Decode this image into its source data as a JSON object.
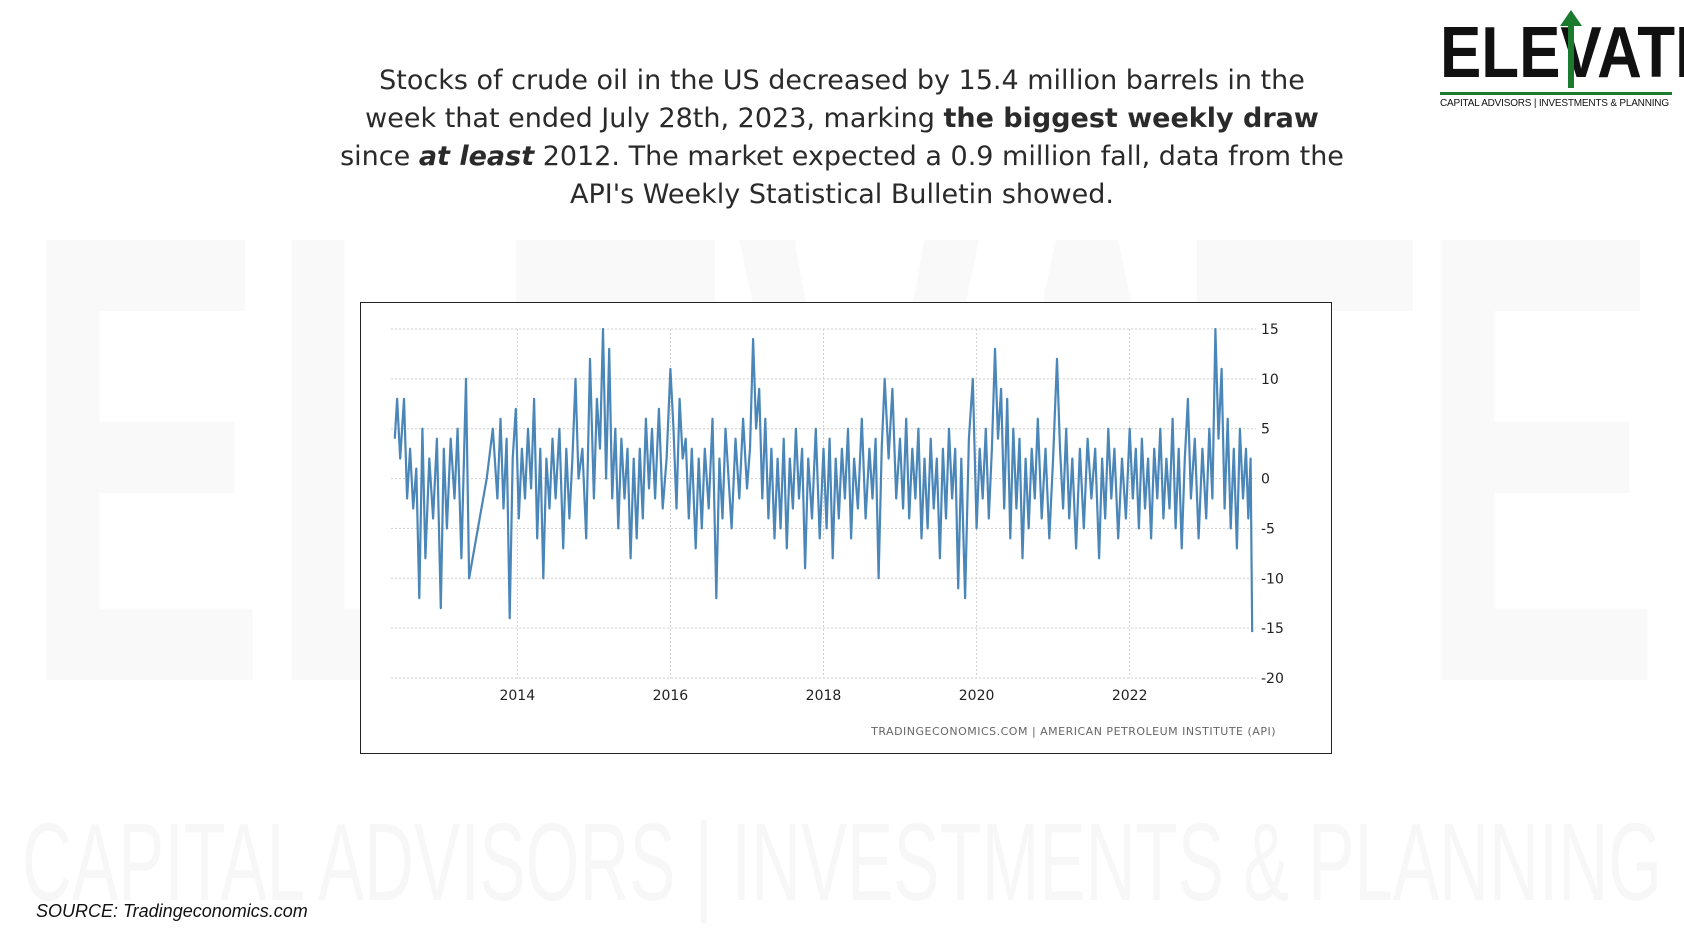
{
  "headline": {
    "part1": "Stocks of crude oil in the US decreased by 15.4 million barrels in the week that ended July 28th, 2023, marking ",
    "bold1": "the biggest weekly draw",
    "part2": " since ",
    "bold_italic": "at least",
    "part3": " 2012. The market expected a 0.9 million fall, data from the API's Weekly Statistical Bulletin showed."
  },
  "logo": {
    "word": "ELEVATE",
    "tagline": "CAPITAL ADVISORS | INVESTMENTS & PLANNING",
    "accent_color": "#1a7a2e"
  },
  "watermark": {
    "word": "ELEVATE",
    "tagline": "CAPITAL ADVISORS | INVESTMENTS & PLANNING"
  },
  "source": "SOURCE: Tradingeconomics.com",
  "chart_data": {
    "type": "line",
    "title": "",
    "xlabel": "",
    "ylabel": "",
    "credit": "TRADINGECONOMICS.COM  |  AMERICAN PETROLEUM INSTITUTE (API)",
    "x_ticks": [
      "2014",
      "2016",
      "2018",
      "2020",
      "2022"
    ],
    "y_ticks": [
      15,
      10,
      5,
      0,
      -5,
      -10,
      -15,
      -20
    ],
    "ylim": [
      -20,
      15
    ],
    "xlim": [
      2012.35,
      2023.65
    ],
    "grid": true,
    "line_color": "#4a86b8",
    "series": [
      {
        "name": "",
        "points": [
          [
            2012.4,
            4
          ],
          [
            2012.43,
            8
          ],
          [
            2012.47,
            2
          ],
          [
            2012.52,
            8
          ],
          [
            2012.56,
            -2
          ],
          [
            2012.6,
            3
          ],
          [
            2012.64,
            -3
          ],
          [
            2012.68,
            1
          ],
          [
            2012.72,
            -12
          ],
          [
            2012.76,
            5
          ],
          [
            2012.8,
            -8
          ],
          [
            2012.85,
            2
          ],
          [
            2012.9,
            -4
          ],
          [
            2012.95,
            4
          ],
          [
            2013.0,
            -13
          ],
          [
            2013.04,
            3
          ],
          [
            2013.08,
            -5
          ],
          [
            2013.13,
            4
          ],
          [
            2013.18,
            -2
          ],
          [
            2013.22,
            5
          ],
          [
            2013.27,
            -8
          ],
          [
            2013.33,
            10
          ],
          [
            2013.37,
            -10
          ],
          [
            2013.6,
            0
          ],
          [
            2013.68,
            5
          ],
          [
            2013.74,
            -2
          ],
          [
            2013.78,
            6
          ],
          [
            2013.82,
            -3
          ],
          [
            2013.86,
            4
          ],
          [
            2013.9,
            -14
          ],
          [
            2013.94,
            2
          ],
          [
            2013.98,
            7
          ],
          [
            2014.02,
            -4
          ],
          [
            2014.06,
            3
          ],
          [
            2014.1,
            -2
          ],
          [
            2014.14,
            5
          ],
          [
            2014.18,
            -1
          ],
          [
            2014.22,
            8
          ],
          [
            2014.26,
            -6
          ],
          [
            2014.3,
            3
          ],
          [
            2014.34,
            -10
          ],
          [
            2014.38,
            2
          ],
          [
            2014.42,
            -3
          ],
          [
            2014.46,
            4
          ],
          [
            2014.5,
            -2
          ],
          [
            2014.55,
            5
          ],
          [
            2014.6,
            -7
          ],
          [
            2014.64,
            3
          ],
          [
            2014.68,
            -4
          ],
          [
            2014.72,
            2
          ],
          [
            2014.76,
            10
          ],
          [
            2014.8,
            0
          ],
          [
            2014.85,
            3
          ],
          [
            2014.9,
            -6
          ],
          [
            2014.95,
            12
          ],
          [
            2015.0,
            -2
          ],
          [
            2015.04,
            8
          ],
          [
            2015.08,
            3
          ],
          [
            2015.12,
            15
          ],
          [
            2015.16,
            0
          ],
          [
            2015.2,
            13
          ],
          [
            2015.24,
            -2
          ],
          [
            2015.28,
            5
          ],
          [
            2015.32,
            -5
          ],
          [
            2015.36,
            4
          ],
          [
            2015.4,
            -2
          ],
          [
            2015.44,
            3
          ],
          [
            2015.48,
            -8
          ],
          [
            2015.52,
            2
          ],
          [
            2015.56,
            -6
          ],
          [
            2015.6,
            3
          ],
          [
            2015.64,
            -4
          ],
          [
            2015.68,
            6
          ],
          [
            2015.72,
            -1
          ],
          [
            2015.76,
            5
          ],
          [
            2015.8,
            -2
          ],
          [
            2015.85,
            7
          ],
          [
            2015.9,
            -3
          ],
          [
            2015.95,
            2
          ],
          [
            2016.0,
            11
          ],
          [
            2016.04,
            5
          ],
          [
            2016.08,
            -3
          ],
          [
            2016.12,
            8
          ],
          [
            2016.16,
            2
          ],
          [
            2016.2,
            4
          ],
          [
            2016.24,
            -4
          ],
          [
            2016.28,
            3
          ],
          [
            2016.33,
            -7
          ],
          [
            2016.37,
            2
          ],
          [
            2016.41,
            -5
          ],
          [
            2016.45,
            3
          ],
          [
            2016.5,
            -3
          ],
          [
            2016.55,
            6
          ],
          [
            2016.6,
            -12
          ],
          [
            2016.64,
            2
          ],
          [
            2016.68,
            -4
          ],
          [
            2016.72,
            5
          ],
          [
            2016.76,
            0
          ],
          [
            2016.8,
            -5
          ],
          [
            2016.85,
            4
          ],
          [
            2016.9,
            -2
          ],
          [
            2016.95,
            6
          ],
          [
            2017.0,
            -1
          ],
          [
            2017.04,
            3
          ],
          [
            2017.08,
            14
          ],
          [
            2017.12,
            5
          ],
          [
            2017.16,
            9
          ],
          [
            2017.2,
            -2
          ],
          [
            2017.24,
            6
          ],
          [
            2017.28,
            -4
          ],
          [
            2017.32,
            3
          ],
          [
            2017.36,
            -6
          ],
          [
            2017.4,
            2
          ],
          [
            2017.44,
            -5
          ],
          [
            2017.48,
            4
          ],
          [
            2017.52,
            -7
          ],
          [
            2017.56,
            2
          ],
          [
            2017.6,
            -3
          ],
          [
            2017.64,
            5
          ],
          [
            2017.68,
            -2
          ],
          [
            2017.72,
            3
          ],
          [
            2017.76,
            -9
          ],
          [
            2017.8,
            2
          ],
          [
            2017.85,
            -4
          ],
          [
            2017.9,
            5
          ],
          [
            2017.95,
            -6
          ],
          [
            2018.0,
            3
          ],
          [
            2018.04,
            -5
          ],
          [
            2018.08,
            4
          ],
          [
            2018.12,
            -8
          ],
          [
            2018.16,
            2
          ],
          [
            2018.2,
            -4
          ],
          [
            2018.24,
            3
          ],
          [
            2018.28,
            -2
          ],
          [
            2018.32,
            5
          ],
          [
            2018.36,
            -6
          ],
          [
            2018.4,
            2
          ],
          [
            2018.45,
            -3
          ],
          [
            2018.5,
            6
          ],
          [
            2018.55,
            -4
          ],
          [
            2018.6,
            3
          ],
          [
            2018.64,
            -2
          ],
          [
            2018.68,
            4
          ],
          [
            2018.72,
            -10
          ],
          [
            2018.76,
            3
          ],
          [
            2018.8,
            10
          ],
          [
            2018.85,
            2
          ],
          [
            2018.9,
            9
          ],
          [
            2018.95,
            -2
          ],
          [
            2019.0,
            4
          ],
          [
            2019.04,
            -3
          ],
          [
            2019.08,
            6
          ],
          [
            2019.12,
            -4
          ],
          [
            2019.16,
            3
          ],
          [
            2019.2,
            -2
          ],
          [
            2019.24,
            5
          ],
          [
            2019.28,
            -6
          ],
          [
            2019.32,
            2
          ],
          [
            2019.36,
            -5
          ],
          [
            2019.4,
            4
          ],
          [
            2019.44,
            -3
          ],
          [
            2019.48,
            2
          ],
          [
            2019.52,
            -8
          ],
          [
            2019.56,
            3
          ],
          [
            2019.6,
            -4
          ],
          [
            2019.64,
            5
          ],
          [
            2019.68,
            -2
          ],
          [
            2019.72,
            3
          ],
          [
            2019.76,
            -11
          ],
          [
            2019.8,
            2
          ],
          [
            2019.85,
            -12
          ],
          [
            2019.9,
            4
          ],
          [
            2019.95,
            10
          ],
          [
            2020.0,
            -5
          ],
          [
            2020.04,
            3
          ],
          [
            2020.08,
            -2
          ],
          [
            2020.12,
            5
          ],
          [
            2020.16,
            -4
          ],
          [
            2020.2,
            3
          ],
          [
            2020.24,
            13
          ],
          [
            2020.28,
            4
          ],
          [
            2020.32,
            9
          ],
          [
            2020.36,
            -3
          ],
          [
            2020.4,
            8
          ],
          [
            2020.44,
            -6
          ],
          [
            2020.48,
            5
          ],
          [
            2020.52,
            -3
          ],
          [
            2020.56,
            4
          ],
          [
            2020.6,
            -8
          ],
          [
            2020.64,
            2
          ],
          [
            2020.68,
            -5
          ],
          [
            2020.72,
            3
          ],
          [
            2020.76,
            -2
          ],
          [
            2020.8,
            6
          ],
          [
            2020.85,
            -4
          ],
          [
            2020.9,
            3
          ],
          [
            2020.95,
            -6
          ],
          [
            2021.0,
            2
          ],
          [
            2021.05,
            12
          ],
          [
            2021.09,
            3
          ],
          [
            2021.13,
            -3
          ],
          [
            2021.17,
            5
          ],
          [
            2021.21,
            -4
          ],
          [
            2021.25,
            2
          ],
          [
            2021.3,
            -7
          ],
          [
            2021.35,
            3
          ],
          [
            2021.4,
            -5
          ],
          [
            2021.45,
            4
          ],
          [
            2021.5,
            -2
          ],
          [
            2021.55,
            3
          ],
          [
            2021.6,
            -8
          ],
          [
            2021.64,
            2
          ],
          [
            2021.68,
            -4
          ],
          [
            2021.72,
            5
          ],
          [
            2021.76,
            -2
          ],
          [
            2021.8,
            3
          ],
          [
            2021.85,
            -6
          ],
          [
            2021.9,
            2
          ],
          [
            2021.95,
            -4
          ],
          [
            2022.0,
            5
          ],
          [
            2022.04,
            -2
          ],
          [
            2022.08,
            3
          ],
          [
            2022.12,
            -5
          ],
          [
            2022.16,
            4
          ],
          [
            2022.2,
            -3
          ],
          [
            2022.24,
            2
          ],
          [
            2022.28,
            -6
          ],
          [
            2022.32,
            3
          ],
          [
            2022.36,
            -2
          ],
          [
            2022.4,
            5
          ],
          [
            2022.44,
            -4
          ],
          [
            2022.48,
            2
          ],
          [
            2022.52,
            -3
          ],
          [
            2022.56,
            6
          ],
          [
            2022.6,
            -5
          ],
          [
            2022.64,
            3
          ],
          [
            2022.68,
            -7
          ],
          [
            2022.72,
            2
          ],
          [
            2022.76,
            8
          ],
          [
            2022.8,
            -2
          ],
          [
            2022.85,
            4
          ],
          [
            2022.9,
            -6
          ],
          [
            2022.95,
            3
          ],
          [
            2023.0,
            -4
          ],
          [
            2023.04,
            5
          ],
          [
            2023.08,
            -2
          ],
          [
            2023.12,
            15
          ],
          [
            2023.16,
            4
          ],
          [
            2023.2,
            11
          ],
          [
            2023.24,
            -3
          ],
          [
            2023.28,
            6
          ],
          [
            2023.32,
            -5
          ],
          [
            2023.36,
            3
          ],
          [
            2023.4,
            -7
          ],
          [
            2023.44,
            5
          ],
          [
            2023.48,
            -2
          ],
          [
            2023.52,
            3
          ],
          [
            2023.55,
            -4
          ],
          [
            2023.58,
            2
          ],
          [
            2023.6,
            -15.4
          ]
        ]
      }
    ]
  }
}
